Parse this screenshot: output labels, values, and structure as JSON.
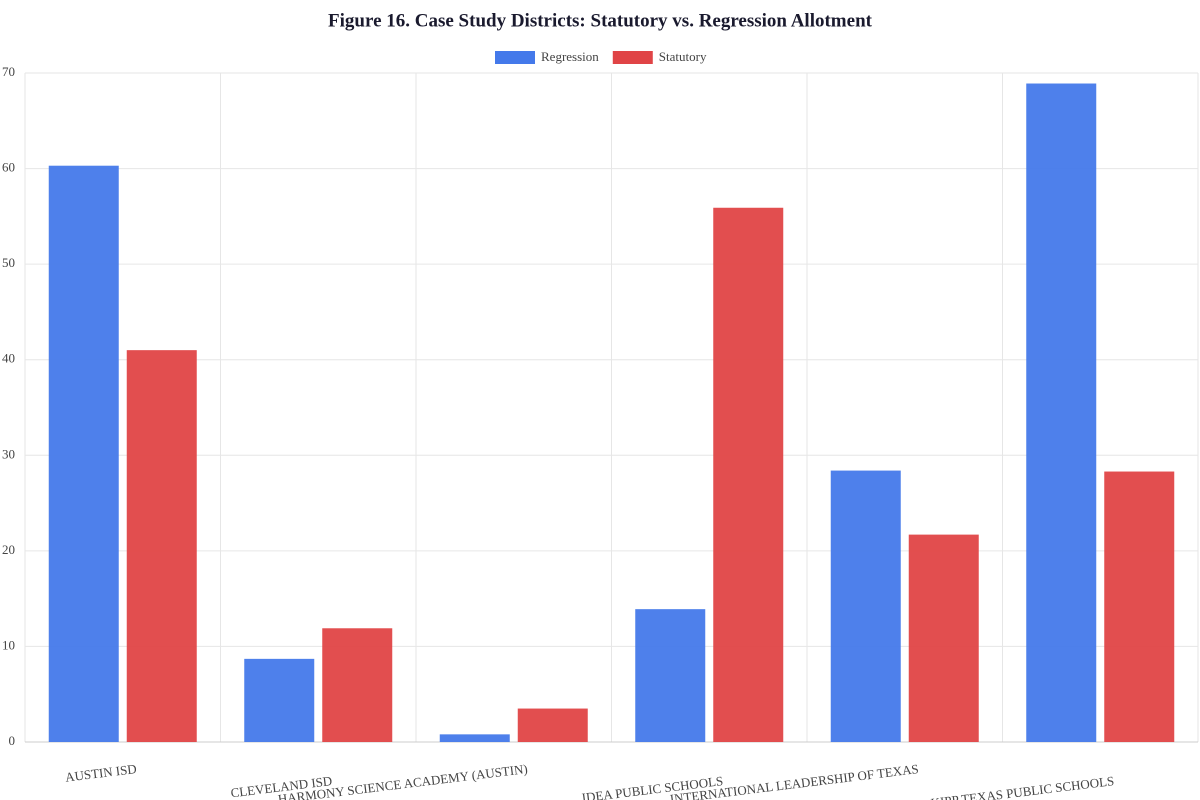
{
  "chart_data": {
    "type": "bar",
    "title": "Figure 16. Case Study Districts: Statutory vs. Regression Allotment",
    "categories": [
      "AUSTIN ISD",
      "CLEVELAND ISD",
      "HARMONY SCIENCE ACADEMY (AUSTIN)",
      "IDEA PUBLIC SCHOOLS",
      "INTERNATIONAL LEADERSHIP OF TEXAS",
      "KIPP TEXAS PUBLIC SCHOOLS"
    ],
    "series": [
      {
        "name": "Regression",
        "color": "#4479ea",
        "values": [
          60.3,
          8.7,
          0.8,
          13.9,
          28.4,
          68.9
        ]
      },
      {
        "name": "Statutory",
        "color": "#e04446",
        "values": [
          41,
          11.9,
          3.5,
          55.9,
          21.7,
          28.3
        ]
      }
    ],
    "ylim": [
      0,
      70
    ],
    "yticks": [
      0,
      10,
      20,
      30,
      40,
      50,
      60,
      70
    ],
    "grid": true,
    "legend": "top"
  }
}
